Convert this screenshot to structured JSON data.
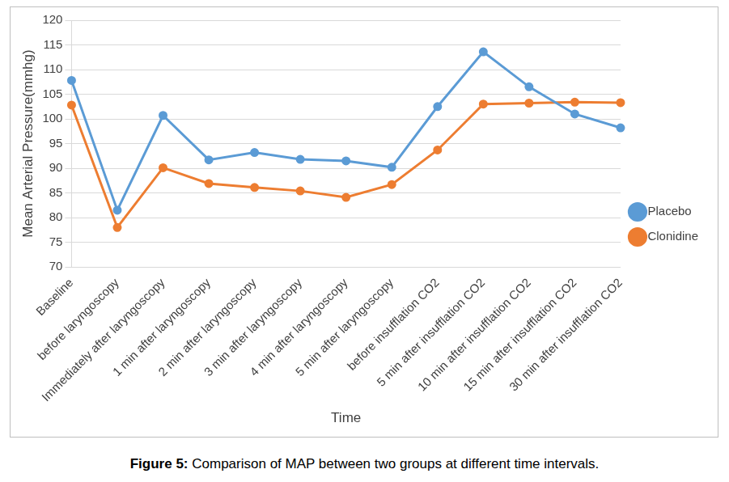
{
  "chart_data": {
    "type": "line",
    "title": "Figure 5: Comparison of MAP between two groups at different time intervals.",
    "x_label": "Time",
    "y_label": "Mean Arterial Pressure(mmhg)",
    "categories": [
      "Baseline",
      "before laryngoscopy",
      "Immediately after laryngoscopy",
      "1 min after laryngoscopy",
      "2 min after laryngoscopy",
      "3 min after laryngoscopy",
      "4 min after laryngoscopy",
      "5 min after laryngoscopy",
      "before insufflation CO2",
      "5 min after insufflation CO2",
      "10 min after insufflation CO2",
      "15 min after insufflation CO2",
      "30 min after insufflation CO2"
    ],
    "series": [
      {
        "name": "Placebo",
        "color": "#5b9bd5",
        "marker": "circle",
        "values": [
          107.8,
          81.5,
          100.7,
          91.7,
          93.2,
          91.8,
          91.5,
          90.2,
          102.5,
          113.6,
          106.5,
          101,
          98.2
        ]
      },
      {
        "name": "Clonidine",
        "color": "#ed7d31",
        "marker": "circle",
        "values": [
          102.8,
          78,
          90.1,
          86.9,
          86.1,
          85.4,
          84.1,
          86.7,
          93.7,
          103,
          103.2,
          103.4,
          103.3
        ]
      }
    ],
    "ylim": [
      70,
      120
    ],
    "yticks": [
      70,
      75,
      80,
      85,
      90,
      95,
      100,
      105,
      110,
      115,
      120
    ],
    "grid": true,
    "legend": "right"
  }
}
